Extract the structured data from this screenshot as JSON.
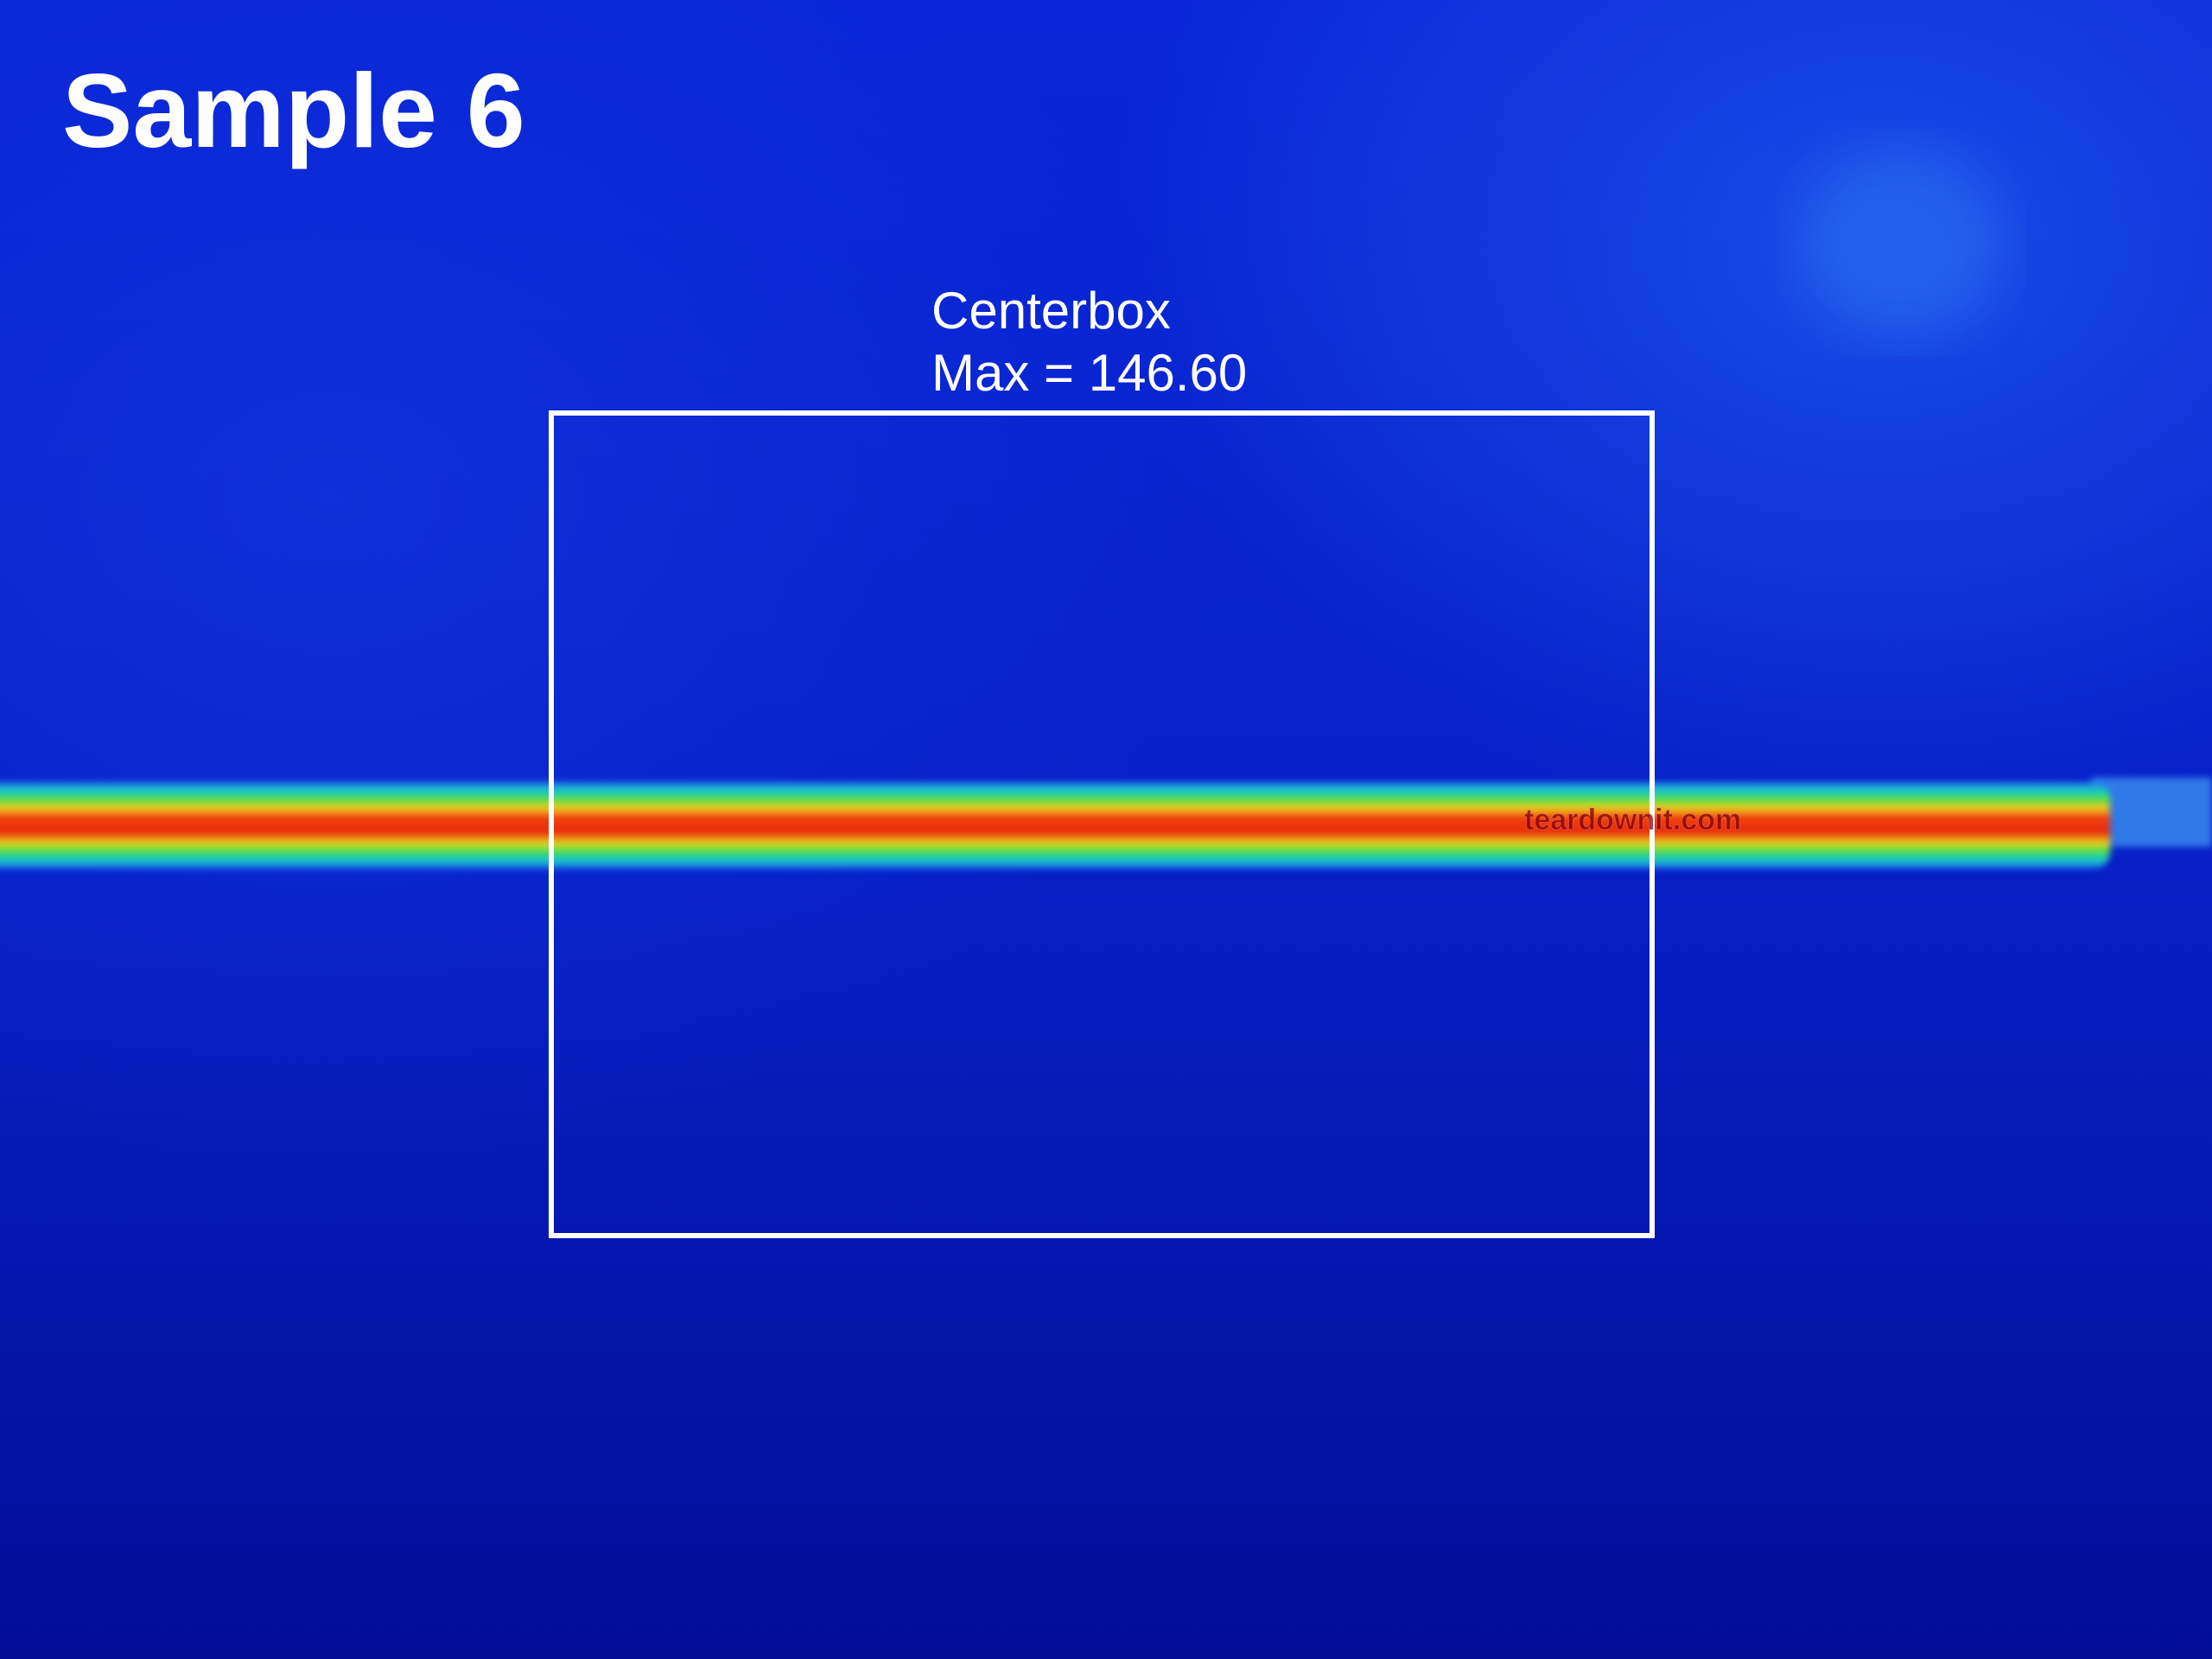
{
  "title": "Sample 6",
  "measurement_box": {
    "name": "Centerbox",
    "reading": "Max = 146.60"
  },
  "watermark": "teardownit.com"
}
